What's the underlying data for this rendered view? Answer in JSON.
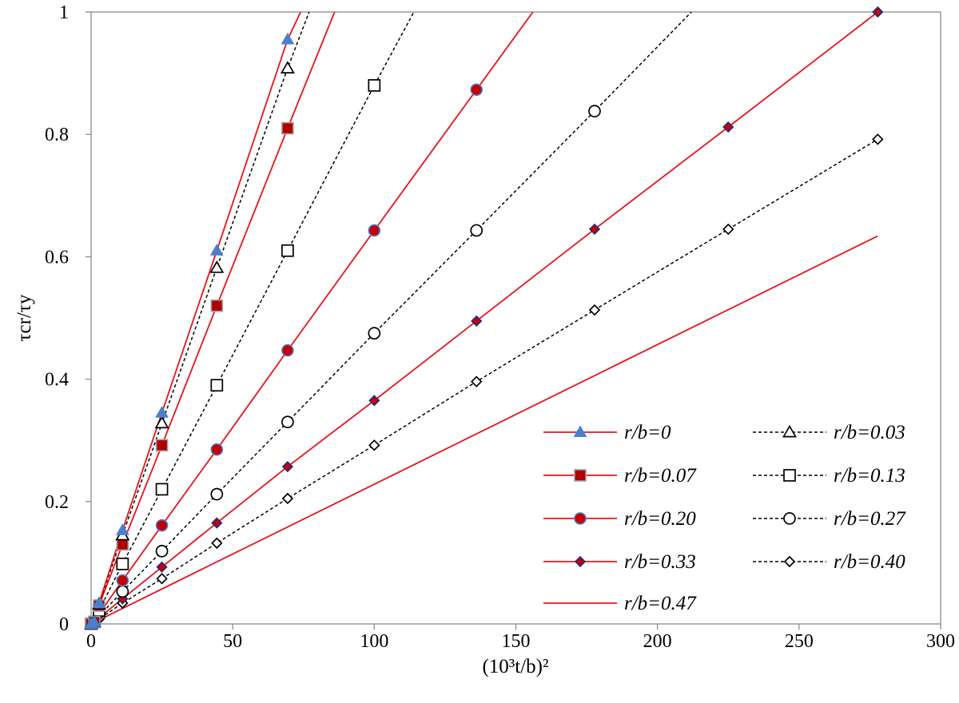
{
  "chart_data": {
    "type": "line",
    "title": "",
    "xlabel": "(10³t/b)²",
    "ylabel": "τcr/τy",
    "xlim": [
      0,
      300
    ],
    "ylim": [
      0,
      1
    ],
    "x_ticks": [
      "0",
      "50",
      "100",
      "150",
      "200",
      "250",
      "300"
    ],
    "y_ticks": [
      "0",
      "0.2",
      "0.4",
      "0.6",
      "0.8",
      "1"
    ],
    "grid": false,
    "legend_position": "bottom-right",
    "series": [
      {
        "name": "r/b=0",
        "color": "#e8141c",
        "line": "solid",
        "marker": "triangle",
        "marker_fill": "#4a7fd0",
        "x": [
          0,
          1.1,
          2.8,
          11.1,
          25,
          44.4,
          69.4
        ],
        "y": [
          0,
          0.003,
          0.034,
          0.153,
          0.345,
          0.61,
          0.955
        ],
        "line_extends_to": [
          74,
          1.0
        ]
      },
      {
        "name": "r/b=0.03",
        "color": "#000000",
        "line": "dashed",
        "marker": "triangle-open",
        "marker_fill": "#ffffff",
        "x": [
          0,
          1.1,
          2.8,
          11.1,
          25,
          44.4,
          69.4
        ],
        "y": [
          0,
          0.003,
          0.032,
          0.145,
          0.328,
          0.582,
          0.908
        ],
        "line_extends_to": [
          77,
          1.0
        ]
      },
      {
        "name": "r/b=0.07",
        "color": "#e8141c",
        "line": "solid",
        "marker": "square",
        "marker_fill": "#b00000",
        "x": [
          0,
          1.1,
          2.8,
          11.1,
          25,
          44.4,
          69.4
        ],
        "y": [
          0,
          0.003,
          0.03,
          0.13,
          0.292,
          0.52,
          0.81
        ],
        "line_extends_to": [
          86,
          1.0
        ]
      },
      {
        "name": "r/b=0.13",
        "color": "#000000",
        "line": "dashed",
        "marker": "square-open",
        "marker_fill": "#ffffff",
        "x": [
          0,
          1.1,
          2.8,
          11.1,
          25,
          44.4,
          69.4,
          100
        ],
        "y": [
          0,
          0.003,
          0.022,
          0.098,
          0.22,
          0.39,
          0.61,
          0.88
        ],
        "line_extends_to": [
          114,
          1.0
        ]
      },
      {
        "name": "r/b=0.20",
        "color": "#e8141c",
        "line": "solid",
        "marker": "circle",
        "marker_fill": "#c40000",
        "x": [
          0,
          1.1,
          2.8,
          11.1,
          25,
          44.4,
          69.4,
          100,
          136.1
        ],
        "y": [
          0,
          0.003,
          0.016,
          0.071,
          0.161,
          0.285,
          0.447,
          0.643,
          0.873
        ],
        "line_extends_to": [
          156,
          1.0
        ]
      },
      {
        "name": "r/b=0.27",
        "color": "#000000",
        "line": "dashed",
        "marker": "circle-open",
        "marker_fill": "#ffffff",
        "x": [
          0,
          1.1,
          2.8,
          11.1,
          25,
          44.4,
          69.4,
          100,
          136.1,
          177.8
        ],
        "y": [
          0,
          0.003,
          0.013,
          0.053,
          0.119,
          0.212,
          0.33,
          0.475,
          0.643,
          0.838
        ],
        "line_extends_to": [
          212,
          1.0
        ]
      },
      {
        "name": "r/b=0.33",
        "color": "#e8141c",
        "line": "solid",
        "marker": "diamond",
        "marker_fill": "#c40000",
        "x": [
          0,
          1.1,
          2.8,
          11.1,
          25,
          44.4,
          69.4,
          100,
          136.1,
          177.8,
          225,
          277.8
        ],
        "y": [
          0,
          0.003,
          0.01,
          0.041,
          0.093,
          0.165,
          0.257,
          0.365,
          0.495,
          0.645,
          0.812,
          1.0
        ],
        "line_extends_to": null
      },
      {
        "name": "r/b=0.40",
        "color": "#000000",
        "line": "dashed",
        "marker": "diamond-open",
        "marker_fill": "#ffffff",
        "x": [
          0,
          1.1,
          2.8,
          11.1,
          25,
          44.4,
          69.4,
          100,
          136.1,
          177.8,
          225,
          277.8
        ],
        "y": [
          0,
          0.003,
          0.008,
          0.034,
          0.074,
          0.132,
          0.205,
          0.292,
          0.396,
          0.513,
          0.645,
          0.792
        ],
        "line_extends_to": null
      },
      {
        "name": "r/b=0.47",
        "color": "#e8141c",
        "line": "solid",
        "marker": "none",
        "marker_fill": null,
        "x": [
          0,
          277.8
        ],
        "y": [
          0,
          0.634
        ],
        "line_extends_to": null
      }
    ]
  }
}
